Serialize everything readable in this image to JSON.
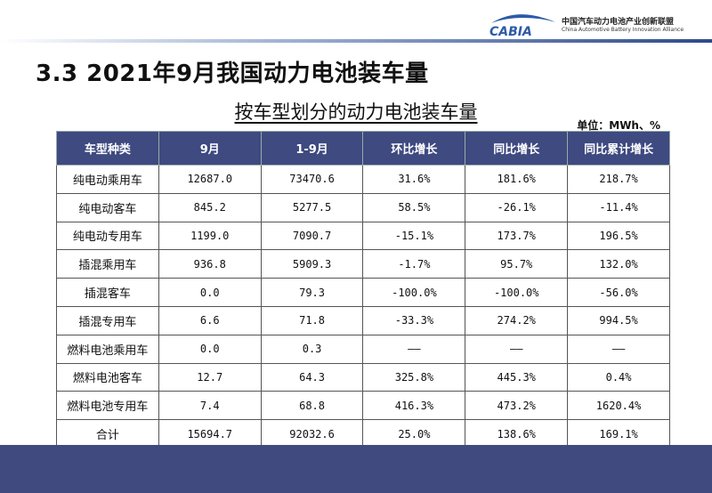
{
  "header": {
    "logo_text": "CABIA",
    "org_name_cn": "中国汽车动力电池产业创新联盟",
    "org_name_en": "China Automotive Battery Innovation Alliance"
  },
  "title": "3.3 2021年9月我国动力电池装车量",
  "subtitle": "按车型划分的动力电池装车量",
  "unit": "单位：MWh、%",
  "table": {
    "columns": [
      "车型种类",
      "9月",
      "1-9月",
      "环比增长",
      "同比增长",
      "同比累计增长"
    ],
    "rows": [
      [
        "纯电动乘用车",
        "12687.0",
        "73470.6",
        "31.6%",
        "181.6%",
        "218.7%"
      ],
      [
        "纯电动客车",
        "845.2",
        "5277.5",
        "58.5%",
        "-26.1%",
        "-11.4%"
      ],
      [
        "纯电动专用车",
        "1199.0",
        "7090.7",
        "-15.1%",
        "173.7%",
        "196.5%"
      ],
      [
        "插混乘用车",
        "936.8",
        "5909.3",
        "-1.7%",
        "95.7%",
        "132.0%"
      ],
      [
        "插混客车",
        "0.0",
        "79.3",
        "-100.0%",
        "-100.0%",
        "-56.0%"
      ],
      [
        "插混专用车",
        "6.6",
        "71.8",
        "-33.3%",
        "274.2%",
        "994.5%"
      ],
      [
        "燃料电池乘用车",
        "0.0",
        "0.3",
        "——",
        "——",
        "——"
      ],
      [
        "燃料电池客车",
        "12.7",
        "64.3",
        "325.8%",
        "445.3%",
        "0.4%"
      ],
      [
        "燃料电池专用车",
        "7.4",
        "68.8",
        "416.3%",
        "473.2%",
        "1620.4%"
      ],
      [
        "合计",
        "15694.7",
        "92032.6",
        "25.0%",
        "138.6%",
        "169.1%"
      ]
    ]
  },
  "colors": {
    "header_bg": "#3e4a80",
    "band": "#414a7e",
    "logo_blue": "#2d5aa8"
  }
}
